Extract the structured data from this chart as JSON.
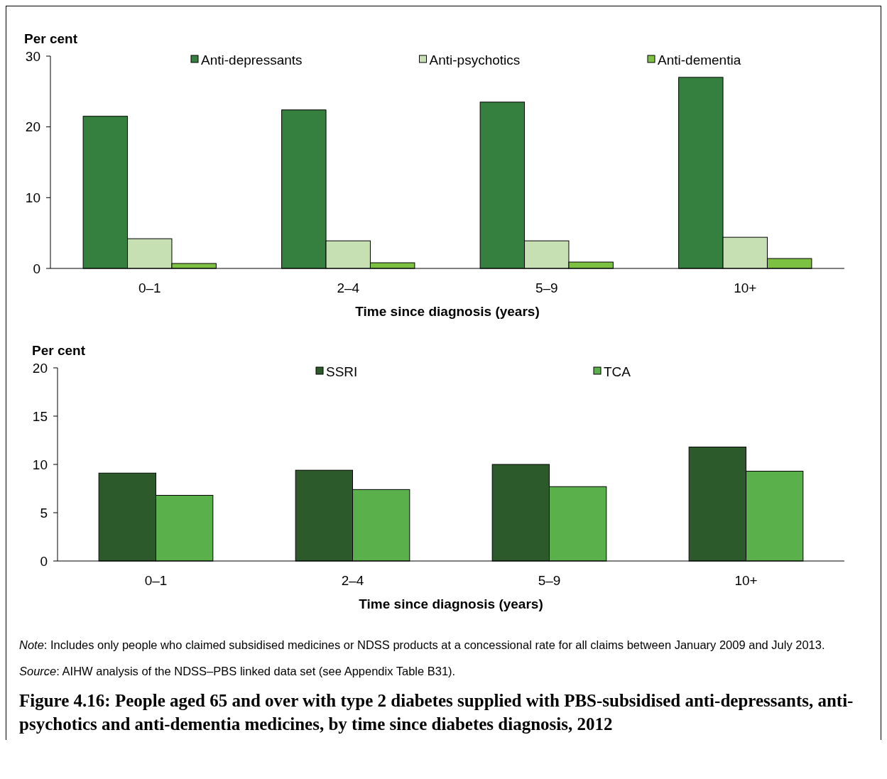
{
  "chart_data": [
    {
      "type": "bar",
      "ylabel": "Per cent",
      "xlabel": "Time since diagnosis (years)",
      "categories": [
        "0–1",
        "2–4",
        "5–9",
        "10+"
      ],
      "series": [
        {
          "name": "Anti-depressants",
          "color": "#35803f",
          "values": [
            21.5,
            22.4,
            23.5,
            27.0
          ]
        },
        {
          "name": "Anti-psychotics",
          "color": "#c6e0b4",
          "values": [
            4.2,
            3.9,
            3.9,
            4.4
          ]
        },
        {
          "name": "Anti-dementia",
          "color": "#7dc142",
          "values": [
            0.7,
            0.8,
            0.9,
            1.4
          ]
        }
      ],
      "ylim": [
        0,
        30
      ],
      "yticks": [
        0,
        10,
        20,
        30
      ],
      "grid": false,
      "legend": "top"
    },
    {
      "type": "bar",
      "ylabel": "Per cent",
      "xlabel": "Time since diagnosis (years)",
      "categories": [
        "0–1",
        "2–4",
        "5–9",
        "10+"
      ],
      "series": [
        {
          "name": "SSRI",
          "color": "#2c5a2a",
          "values": [
            9.1,
            9.4,
            10.0,
            11.8
          ]
        },
        {
          "name": "TCA",
          "color": "#5ab04a",
          "values": [
            6.8,
            7.4,
            7.7,
            9.3
          ]
        }
      ],
      "ylim": [
        0,
        20
      ],
      "yticks": [
        0,
        5,
        10,
        15,
        20
      ],
      "grid": false,
      "legend": "top",
      "annotations": [
        "Note: Includes only people who claimed subsidised medicines or NDSS products at a concessional rate for all claims between January 2009 and July 2013.",
        "Source: AIHW analysis of the NDSS–PBS linked data set (see Appendix Table B31)."
      ],
      "title": "Figure 4.16: People aged 65 and over with type 2 diabetes supplied with PBS-subsidised anti-depressants, anti-psychotics and anti-dementia medicines, by time since diabetes diagnosis, 2012"
    }
  ]
}
